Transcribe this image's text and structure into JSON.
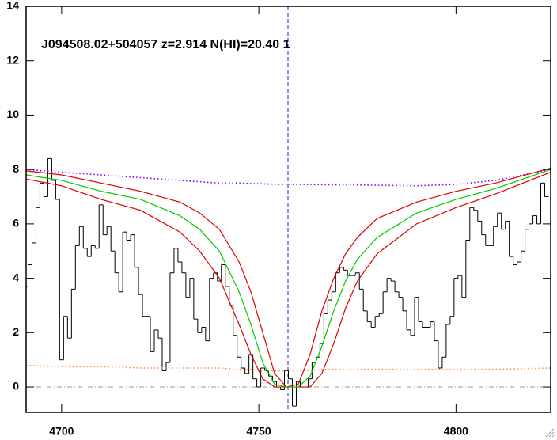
{
  "chart_data": {
    "type": "line",
    "title": "J094508.02+504057 z=2.914 N(HI)=20.40 1",
    "xlim": [
      4691,
      4824
    ],
    "ylim": [
      -0.93,
      14
    ],
    "xticks": [
      4700,
      4750,
      4800
    ],
    "yticks": [
      0,
      2,
      4,
      6,
      8,
      10,
      12,
      14
    ],
    "vline": 4757.4,
    "vline_color": "#2222cc",
    "hline": 0,
    "hline_color": "#999999",
    "series": [
      {
        "color": "#000000",
        "style": "step",
        "x": [
          4691,
          4692,
          4693,
          4694,
          4695,
          4696,
          4697,
          4698,
          4699,
          4700,
          4701,
          4702,
          4703,
          4704,
          4705,
          4706,
          4707,
          4708,
          4709,
          4710,
          4711,
          4712,
          4713,
          4714,
          4715,
          4716,
          4717,
          4718,
          4719,
          4720,
          4721,
          4722,
          4723,
          4724,
          4725,
          4726,
          4727,
          4728,
          4729,
          4730,
          4731,
          4732,
          4733,
          4734,
          4735,
          4736,
          4737,
          4738,
          4739,
          4740,
          4741,
          4742,
          4743,
          4744,
          4745,
          4746,
          4747,
          4748,
          4749,
          4750,
          4751,
          4752,
          4753,
          4754,
          4755,
          4756,
          4757,
          4758,
          4759,
          4760,
          4761,
          4762,
          4763,
          4764,
          4765,
          4766,
          4767,
          4768,
          4769,
          4770,
          4771,
          4772,
          4773,
          4774,
          4775,
          4776,
          4777,
          4778,
          4779,
          4780,
          4781,
          4782,
          4783,
          4784,
          4785,
          4786,
          4787,
          4788,
          4789,
          4790,
          4791,
          4792,
          4793,
          4794,
          4795,
          4796,
          4797,
          4798,
          4799,
          4800,
          4801,
          4802,
          4803,
          4804,
          4805,
          4806,
          4807,
          4808,
          4809,
          4810,
          4811,
          4812,
          4813,
          4814,
          4815,
          4816,
          4817,
          4818,
          4819,
          4820,
          4821,
          4822,
          4823
        ],
        "values": [
          3.7,
          4.5,
          5.3,
          6.6,
          7.5,
          7.0,
          8.4,
          7.6,
          6.9,
          1.0,
          2.6,
          1.8,
          3.6,
          5.2,
          5.9,
          5.1,
          4.8,
          5.2,
          5.1,
          6.7,
          5.6,
          5.9,
          5.0,
          4.2,
          3.5,
          5.7,
          5.4,
          5.6,
          4.4,
          3.4,
          2.6,
          2.6,
          1.3,
          2.1,
          1.8,
          0.6,
          0.9,
          4.2,
          5.1,
          4.6,
          4.2,
          3.3,
          4.0,
          2.5,
          2.0,
          2.2,
          1.7,
          4.0,
          4.2,
          3.9,
          4.5,
          3.7,
          3.0,
          1.9,
          1.1,
          0.7,
          0.5,
          1.2,
          0.3,
          0.0,
          0.7,
          0.6,
          0.4,
          0.2,
          0.0,
          -0.1,
          0.6,
          0.3,
          -0.7,
          0.2,
          0.0,
          0.0,
          0.3,
          0.9,
          1.1,
          1.6,
          2.7,
          3.2,
          3.5,
          4.2,
          4.4,
          4.3,
          4.1,
          4.1,
          4.2,
          3.6,
          2.8,
          2.4,
          2.2,
          2.6,
          2.7,
          3.5,
          4.0,
          3.9,
          3.5,
          3.3,
          2.8,
          2.1,
          1.9,
          3.3,
          2.4,
          2.2,
          2.2,
          2.4,
          1.7,
          0.7,
          1.1,
          2.3,
          2.6,
          4.0,
          4.1,
          3.3,
          5.4,
          6.6,
          6.5,
          6.1,
          5.6,
          5.2,
          5.2,
          5.9,
          6.4,
          5.8,
          6.1,
          4.8,
          4.5,
          4.6,
          5.0,
          5.8,
          6.0,
          6.3,
          6.0,
          7.5,
          7.0
        ]
      },
      {
        "color": "#ff8c40",
        "style": "dotted",
        "x": [
          4691,
          4700,
          4710,
          4720,
          4730,
          4735,
          4740,
          4745,
          4748,
          4751,
          4754,
          4757,
          4760,
          4763,
          4766,
          4769,
          4772,
          4775,
          4780,
          4790,
          4800,
          4810,
          4824
        ],
        "values": [
          0.8,
          0.75,
          0.75,
          0.7,
          0.7,
          0.7,
          0.7,
          0.65,
          0.65,
          0.6,
          0.6,
          0.6,
          0.6,
          0.6,
          0.65,
          0.65,
          0.65,
          0.65,
          0.65,
          0.65,
          0.65,
          0.65,
          0.7
        ]
      },
      {
        "color": "#8800ff",
        "style": "dotted",
        "x": [
          4691,
          4700,
          4710,
          4720,
          4730,
          4735,
          4740,
          4745,
          4748,
          4751,
          4754,
          4757,
          4760,
          4763,
          4766,
          4769,
          4772,
          4775,
          4780,
          4790,
          4800,
          4810,
          4824
        ],
        "values": [
          8.0,
          7.9,
          7.8,
          7.7,
          7.6,
          7.55,
          7.5,
          7.5,
          7.48,
          7.47,
          7.46,
          7.45,
          7.45,
          7.45,
          7.44,
          7.44,
          7.43,
          7.43,
          7.42,
          7.4,
          7.45,
          7.6,
          8.0
        ]
      },
      {
        "color": "#dd0000",
        "style": "solid",
        "x": [
          4691,
          4700,
          4710,
          4720,
          4730,
          4735,
          4740,
          4745,
          4748,
          4751,
          4754,
          4757,
          4760,
          4763,
          4766,
          4769,
          4772,
          4775,
          4780,
          4790,
          4800,
          4810,
          4824
        ],
        "values": [
          7.95,
          7.8,
          7.5,
          7.2,
          6.8,
          6.4,
          5.8,
          4.6,
          3.5,
          2.0,
          0.5,
          0.0,
          0.1,
          1.2,
          2.8,
          4.0,
          4.9,
          5.5,
          6.2,
          6.8,
          7.2,
          7.5,
          8.05
        ]
      },
      {
        "color": "#dd0000",
        "style": "solid",
        "x": [
          4691,
          4700,
          4710,
          4720,
          4730,
          4735,
          4740,
          4745,
          4748,
          4751,
          4754,
          4757,
          4760,
          4763,
          4766,
          4769,
          4772,
          4775,
          4780,
          4790,
          4800,
          4810,
          4824
        ],
        "values": [
          7.65,
          7.4,
          6.9,
          6.5,
          5.7,
          5.0,
          4.0,
          2.3,
          1.2,
          0.3,
          0.0,
          0.0,
          0.0,
          0.0,
          0.5,
          1.6,
          2.9,
          3.9,
          4.9,
          6.0,
          6.6,
          7.1,
          7.9
        ]
      },
      {
        "color": "#00cc00",
        "style": "solid",
        "x": [
          4691,
          4700,
          4710,
          4720,
          4730,
          4735,
          4740,
          4745,
          4748,
          4751,
          4754,
          4757,
          4760,
          4763,
          4766,
          4769,
          4772,
          4775,
          4780,
          4790,
          4800,
          4810,
          4824
        ],
        "values": [
          7.8,
          7.6,
          7.2,
          6.9,
          6.3,
          5.8,
          5.0,
          3.5,
          2.3,
          0.9,
          0.1,
          0.0,
          0.0,
          0.4,
          1.5,
          2.8,
          3.9,
          4.7,
          5.5,
          6.4,
          6.9,
          7.3,
          8.0
        ]
      }
    ]
  }
}
